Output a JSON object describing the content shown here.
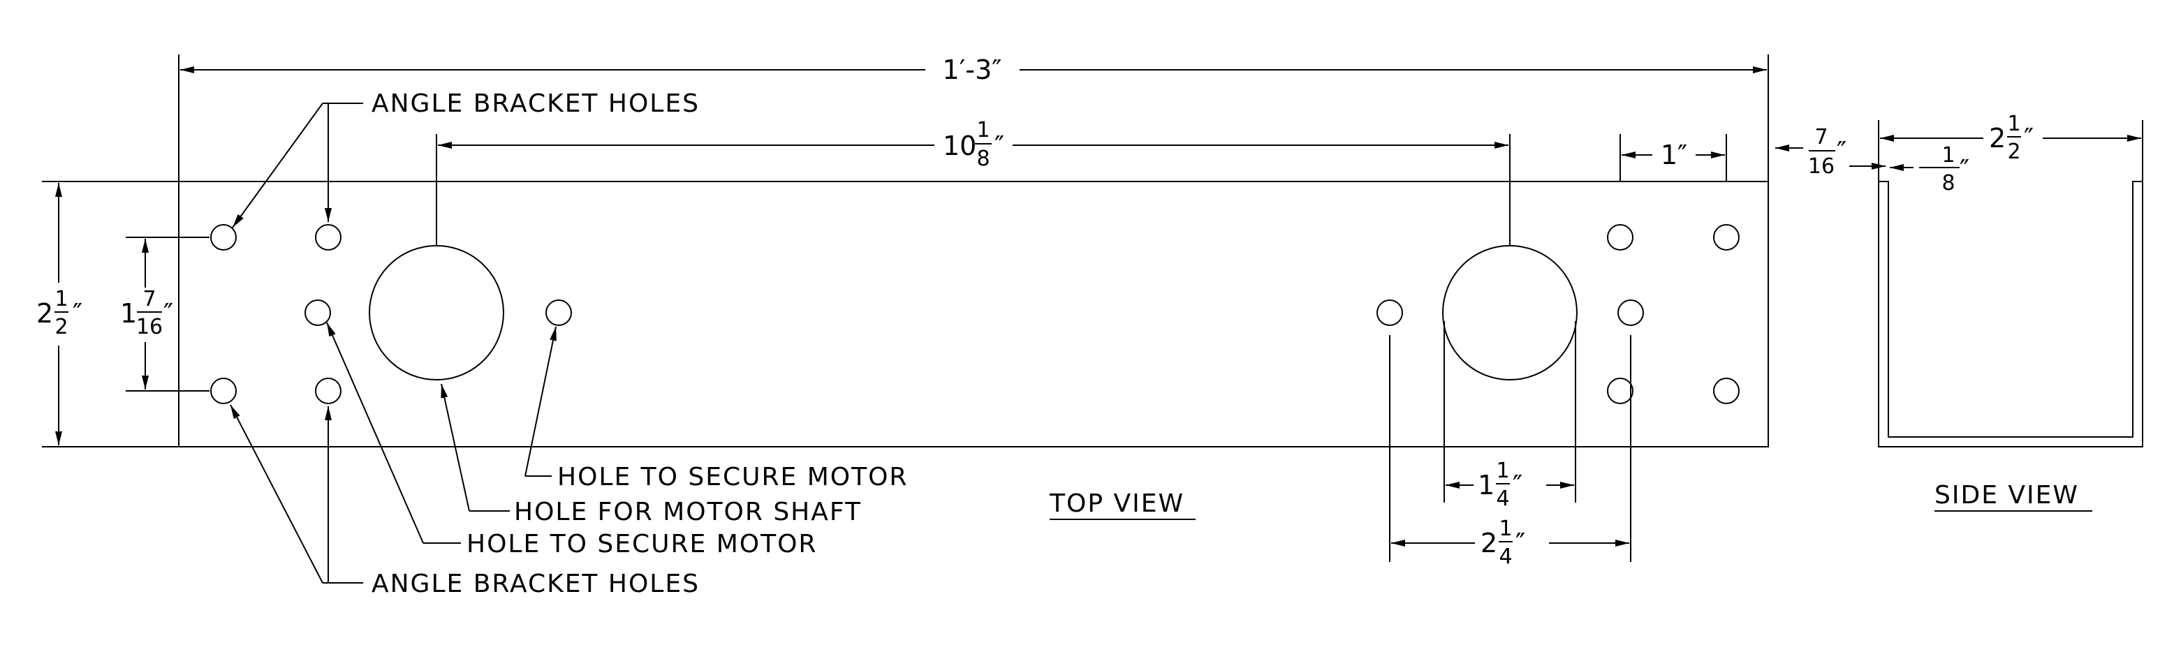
{
  "labels": {
    "angle_bracket_holes_top": "ANGLE BRACKET HOLES",
    "angle_bracket_holes_bottom": "ANGLE BRACKET HOLES",
    "hole_secure_motor_right": "HOLE TO SECURE MOTOR",
    "hole_motor_shaft": "HOLE FOR MOTOR SHAFT",
    "hole_secure_motor_left": "HOLE TO SECURE MOTOR",
    "top_view": "TOP VIEW",
    "side_view": "SIDE VIEW"
  },
  "dimensions": {
    "overall_length": "1′-3″",
    "shaft_spacing": {
      "whole": "10",
      "num": "1",
      "den": "8",
      "unit": "″"
    },
    "end_hole_spacing": "1″",
    "end_offset": {
      "num": "7",
      "den": "16",
      "unit": "″"
    },
    "plate_width": {
      "whole": "2",
      "num": "1",
      "den": "2",
      "unit": "″"
    },
    "bracket_hole_spacing": {
      "whole": "1",
      "num": "7",
      "den": "16",
      "unit": "″"
    },
    "shaft_hole_dia": {
      "whole": "1",
      "num": "1",
      "den": "4",
      "unit": "″"
    },
    "secure_hole_spacing": {
      "whole": "2",
      "num": "1",
      "den": "4",
      "unit": "″"
    },
    "side_width": {
      "whole": "2",
      "num": "1",
      "den": "2",
      "unit": "″"
    },
    "wall_thickness": {
      "num": "1",
      "den": "8",
      "unit": "″"
    }
  }
}
